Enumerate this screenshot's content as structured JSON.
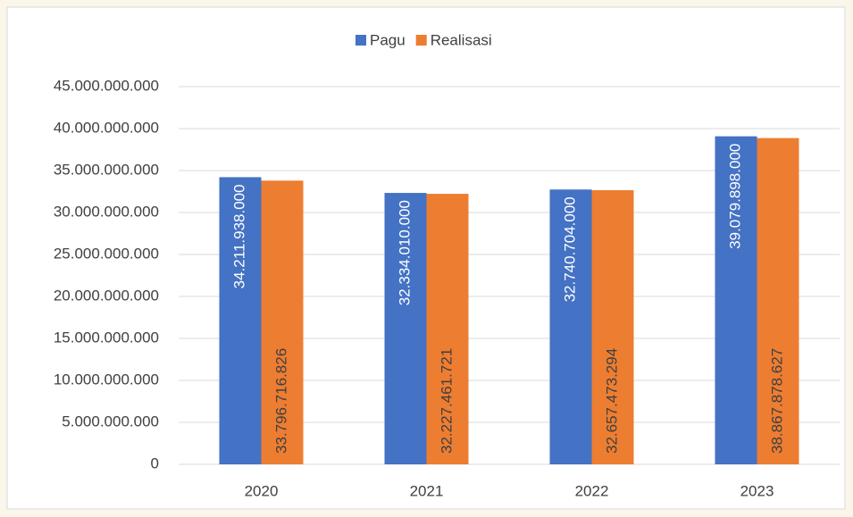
{
  "chart_data": {
    "type": "bar",
    "categories": [
      "2020",
      "2021",
      "2022",
      "2023"
    ],
    "series": [
      {
        "name": "Pagu",
        "color": "#4472c4",
        "values": [
          34211938000,
          32334010000,
          32740704000,
          39079898000
        ],
        "value_labels": [
          "34.211.938.000",
          "32.334.010.000",
          "32.740.704.000",
          "39.079.898.000"
        ]
      },
      {
        "name": "Realisasi",
        "color": "#ed7d31",
        "values": [
          33796716826,
          32227461721,
          32657473294,
          38867878627
        ],
        "value_labels": [
          "33.796.716.826",
          "32.227.461.721",
          "32.657.473.294",
          "38.867.878.627"
        ]
      }
    ],
    "ylim": [
      0,
      45000000000
    ],
    "yticks": [
      0,
      {
        "value": 5000000000,
        "label": "5.000.000.000"
      },
      {
        "value": 10000000000,
        "label": "10.000.000.000"
      },
      {
        "value": 15000000000,
        "label": "15.000.000.000"
      },
      {
        "value": 20000000000,
        "label": "20.000.000.000"
      },
      {
        "value": 25000000000,
        "label": "25.000.000.000"
      },
      {
        "value": 30000000000,
        "label": "30.000.000.000"
      },
      {
        "value": 35000000000,
        "label": "35.000.000.000"
      },
      {
        "value": 40000000000,
        "label": "40.000.000.000"
      },
      {
        "value": 45000000000,
        "label": "45.000.000.000"
      }
    ],
    "grid": true,
    "legend": "top"
  }
}
